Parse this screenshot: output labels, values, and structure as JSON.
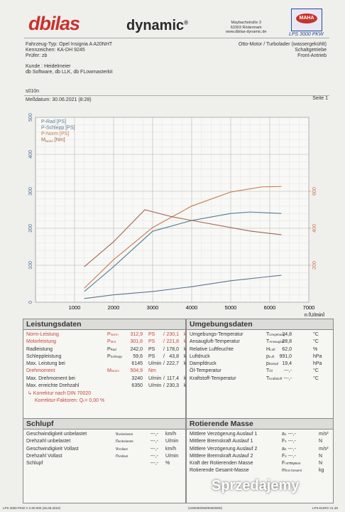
{
  "header": {
    "brand": "dbilas",
    "brand2": "dynamic",
    "reg": "®",
    "address": [
      "Maybachstraße 3",
      "63303 Rödermark",
      "www.dbilas-dynamic.de"
    ],
    "logo_text": "MAHA",
    "product": "LPS 3000 PKW"
  },
  "vehicle": {
    "left": [
      "Fahrzeug-Typ: Opel Insignia A A20NHT",
      "Kennzeichen: KA-DH 9245",
      "Prüfer: zb"
    ],
    "right": [
      "Otto-Motor / Turbolader (wassergekühlt)",
      "Schaltgetriebe",
      "Front-Antrieb"
    ],
    "customer": [
      "Kunde : Heidelmeier",
      "db Software, db LLK, db FLowmasterkit"
    ]
  },
  "run": {
    "id": "s010n",
    "date": "Meßdatum: 30.06.2021 (8:28)",
    "page": "Seite 1"
  },
  "chart_data": {
    "type": "line",
    "x_label": "n [U/min]",
    "xlim": [
      0,
      7000
    ],
    "xticks": [
      1000,
      2000,
      3000,
      4000,
      5000,
      6000,
      7000
    ],
    "ylim": [
      0,
      500
    ],
    "yticks": [
      0,
      100,
      200,
      300,
      400,
      500
    ],
    "y2lim": [
      0,
      1000
    ],
    "y2ticks": [
      200,
      400,
      600
    ],
    "grid": true,
    "legend": "top-left",
    "series": [
      {
        "name": "P-Rad [PS]",
        "color": "#4f7f93",
        "x": [
          1250,
          2000,
          3000,
          4000,
          5000,
          5500,
          6300
        ],
        "values": [
          29,
          96,
          192,
          221,
          240,
          244,
          240
        ]
      },
      {
        "name": "P-Schlepp [PS]",
        "color": "#5b7590",
        "x": [
          1250,
          2000,
          3000,
          4000,
          5000,
          6300
        ],
        "values": [
          10,
          20,
          29,
          42,
          58,
          73
        ]
      },
      {
        "name": "P-Norm [PS]",
        "color": "#c97a4c",
        "x": [
          1250,
          2000,
          3000,
          4000,
          5000,
          5800,
          6300
        ],
        "values": [
          38,
          115,
          202,
          260,
          298,
          312,
          313
        ]
      },
      {
        "name": "M",
        "sub": "Norm",
        "unit": " [Nm]",
        "color": "#a3614a",
        "axis": "y2",
        "x": [
          1250,
          2000,
          2800,
          3500,
          4500,
          5500,
          6300
        ],
        "values": [
          192,
          327,
          500,
          462,
          423,
          385,
          365
        ]
      }
    ]
  },
  "leistung": {
    "title": "Leistungsdaten",
    "rows": [
      {
        "label": "Norm-Leistung",
        "sym": "P",
        "sub": "Norm",
        "v1": "312,9",
        "u1": "PS",
        "sep": "/",
        "v2": "230,1",
        "u2": "kW",
        "red": true
      },
      {
        "label": "Motorleistung",
        "sym": "P",
        "sub": "Mot",
        "v1": "301,6",
        "u1": "PS",
        "sep": "/",
        "v2": "221,8",
        "u2": "kW",
        "red": true
      },
      {
        "label": "Radleistung",
        "sym": "P",
        "sub": "Rad",
        "v1": "242,0",
        "u1": "PS",
        "sep": "/",
        "v2": "178,0",
        "u2": "kW"
      },
      {
        "label": "Schleppleistung",
        "sym": "P",
        "sub": "Schlepp",
        "v1": "59,6",
        "u1": "PS",
        "sep": "/",
        "v2": "43,8",
        "u2": "kW"
      },
      {
        "label": "Max. Leistung bei",
        "v1": "6145",
        "u1": "U/min",
        "sep": "/",
        "v2": "222,7",
        "u2": "km/h"
      },
      {
        "label": "Drehmoment",
        "sym": "M",
        "sub": "Norm",
        "v1": "504,9",
        "u1": "Nm",
        "red": true
      },
      {
        "label": "Max. Drehmoment bei",
        "v1": "3240",
        "u1": "U/min",
        "sep": "/",
        "v2": "117,4",
        "u2": "km/h"
      },
      {
        "label": "Max. erreichte Drehzahl",
        "v1": "6350",
        "u1": "U/min",
        "sep": "/",
        "v2": "230,3",
        "u2": "km/h"
      }
    ],
    "notes": [
      "↳ Korrektur nach DIN 70020",
      "Korrektur-Faktoren: Q",
      "c",
      "= 0,00 %"
    ]
  },
  "umgebung": {
    "title": "Umgebungsdaten",
    "rows": [
      {
        "label": "Umgebungs-Temperatur",
        "sym": "T",
        "sub": "Umgebung",
        "v1": "24,8",
        "u1": "°C"
      },
      {
        "label": "Ansaugluft-Temperatur",
        "sym": "T",
        "sub": "Ansaugluft",
        "v1": "28,8",
        "u1": "°C"
      },
      {
        "label": "Relative Luftfeuchte",
        "sym": "H",
        "sub": "Luft",
        "v1": "62,0",
        "u1": "%"
      },
      {
        "label": "Luftdruck",
        "sym": "p",
        "sub": "Luft",
        "v1": "991,0",
        "u1": "hPa"
      },
      {
        "label": "Dampfdruck",
        "sym": "p",
        "sub": "Dampf",
        "v1": "19,4",
        "u1": "hPa"
      },
      {
        "label": "Öl-Temperatur",
        "sym": "T",
        "sub": "Öl",
        "v1": "---,-",
        "u1": "°C"
      },
      {
        "label": "Kraftstoff-Temperatur",
        "sym": "T",
        "sub": "Kraftstoff",
        "v1": "---,-",
        "u1": "°C"
      }
    ]
  },
  "schlupf": {
    "title": "Schlupf",
    "rows": [
      {
        "label": "Geschwindigkeit unbelastet",
        "sym": "v",
        "sub": "unbelastet",
        "v1": "---,-",
        "u1": "km/h"
      },
      {
        "label": "Drehzahl unbelastet",
        "sym": "n",
        "sub": "unbelastet",
        "v1": "---,-",
        "u1": "U/min"
      },
      {
        "label": "Geschwindigkeit Vollast",
        "sym": "v",
        "sub": "Vollast",
        "v1": "---,-",
        "u1": "km/h"
      },
      {
        "label": "Drehzahl Vollast",
        "sym": "n",
        "sub": "Vollast",
        "v1": "---,-",
        "u1": "U/min"
      },
      {
        "label": "Schlupf",
        "v1": "---,-",
        "u1": "%"
      }
    ]
  },
  "masse": {
    "title": "Rotierende Masse",
    "rows": [
      {
        "label": "Mittlere Verzögerung Auslauf 1",
        "sym": "a",
        "sub": "1",
        "v1": "---,-",
        "u1": "m/s²"
      },
      {
        "label": "Mittlere Bremskraft Auslauf 1",
        "sym": "F",
        "sub": "1",
        "v1": "---,-",
        "u1": "N"
      },
      {
        "label": "Mittlere Verzögerung Auslauf 2",
        "sym": "a",
        "sub": "2",
        "v1": "---,-",
        "u1": "m/s²"
      },
      {
        "label": "Mittlere Bremskraft Auslauf 2",
        "sym": "F",
        "sub": "2",
        "v1": "---,-",
        "u1": "N"
      },
      {
        "label": "Kraft der Rotierenden Masse",
        "sym": "F",
        "sub": "rot.Gesamt",
        "v1": "---,-",
        "u1": "N"
      },
      {
        "label": "Rotierende Gesamt-Masse",
        "sym": "m",
        "sub": "rot.Gesamt",
        "u1": "kg"
      }
    ]
  },
  "watermark": "Sprzedajemy",
  "footer": [
    "LPS 3000 PKW V 2.00.000 (25.08.2010)",
    "(100/000/000/000/0000)",
    "LPS-EURO V1.30"
  ]
}
